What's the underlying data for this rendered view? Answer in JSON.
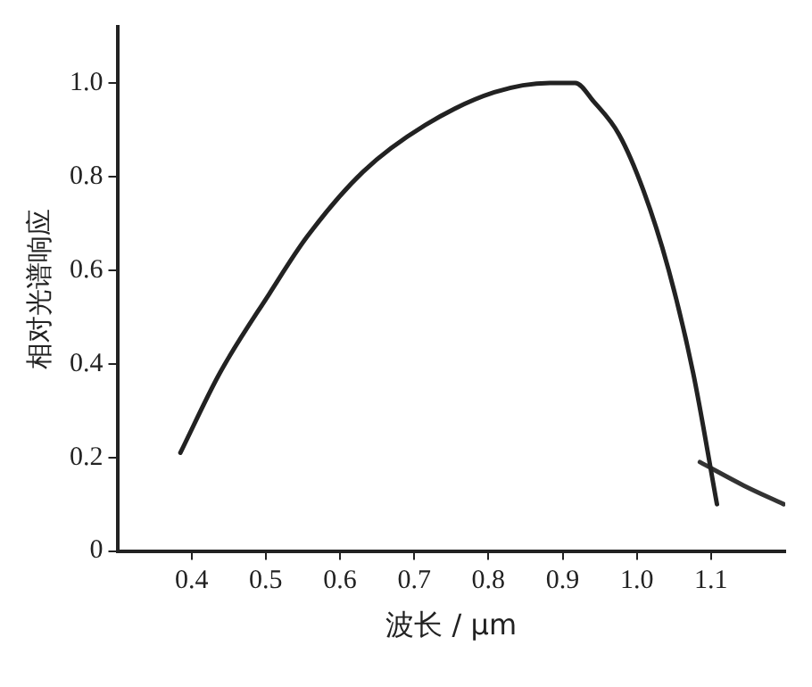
{
  "chart_data": {
    "type": "line",
    "xlabel": "波长 / μm",
    "ylabel": "相对光谱响应",
    "xlim": [
      0.3,
      1.2
    ],
    "xticks": [
      0.4,
      0.5,
      0.6,
      0.7,
      0.8,
      0.9,
      {
        "value": 1,
        "label": "1.0"
      },
      1.1
    ],
    "ylim": [
      0,
      1.12
    ],
    "yticks": [
      0,
      0.2,
      0.4,
      0.6,
      0.8,
      {
        "value": 1,
        "label": "1.0"
      }
    ],
    "grid": false,
    "legend": false,
    "marker": "none",
    "line_style": "solid",
    "series": [
      {
        "color": "#222222",
        "x": [
          0.385,
          0.438,
          0.505,
          0.555,
          0.631,
          0.715,
          0.808,
          0.883,
          0.917,
          0.942,
          0.976,
          1.009,
          1.043,
          1.076,
          1.108
        ],
        "values": [
          0.21,
          0.38,
          0.55,
          0.67,
          0.81,
          0.91,
          0.98,
          1.0,
          1.0,
          0.96,
          0.89,
          0.77,
          0.6,
          0.38,
          0.1
        ]
      },
      {
        "color": "#333333",
        "x": [
          1.085,
          1.144,
          1.198
        ],
        "values": [
          0.19,
          0.14,
          0.1
        ]
      }
    ]
  }
}
